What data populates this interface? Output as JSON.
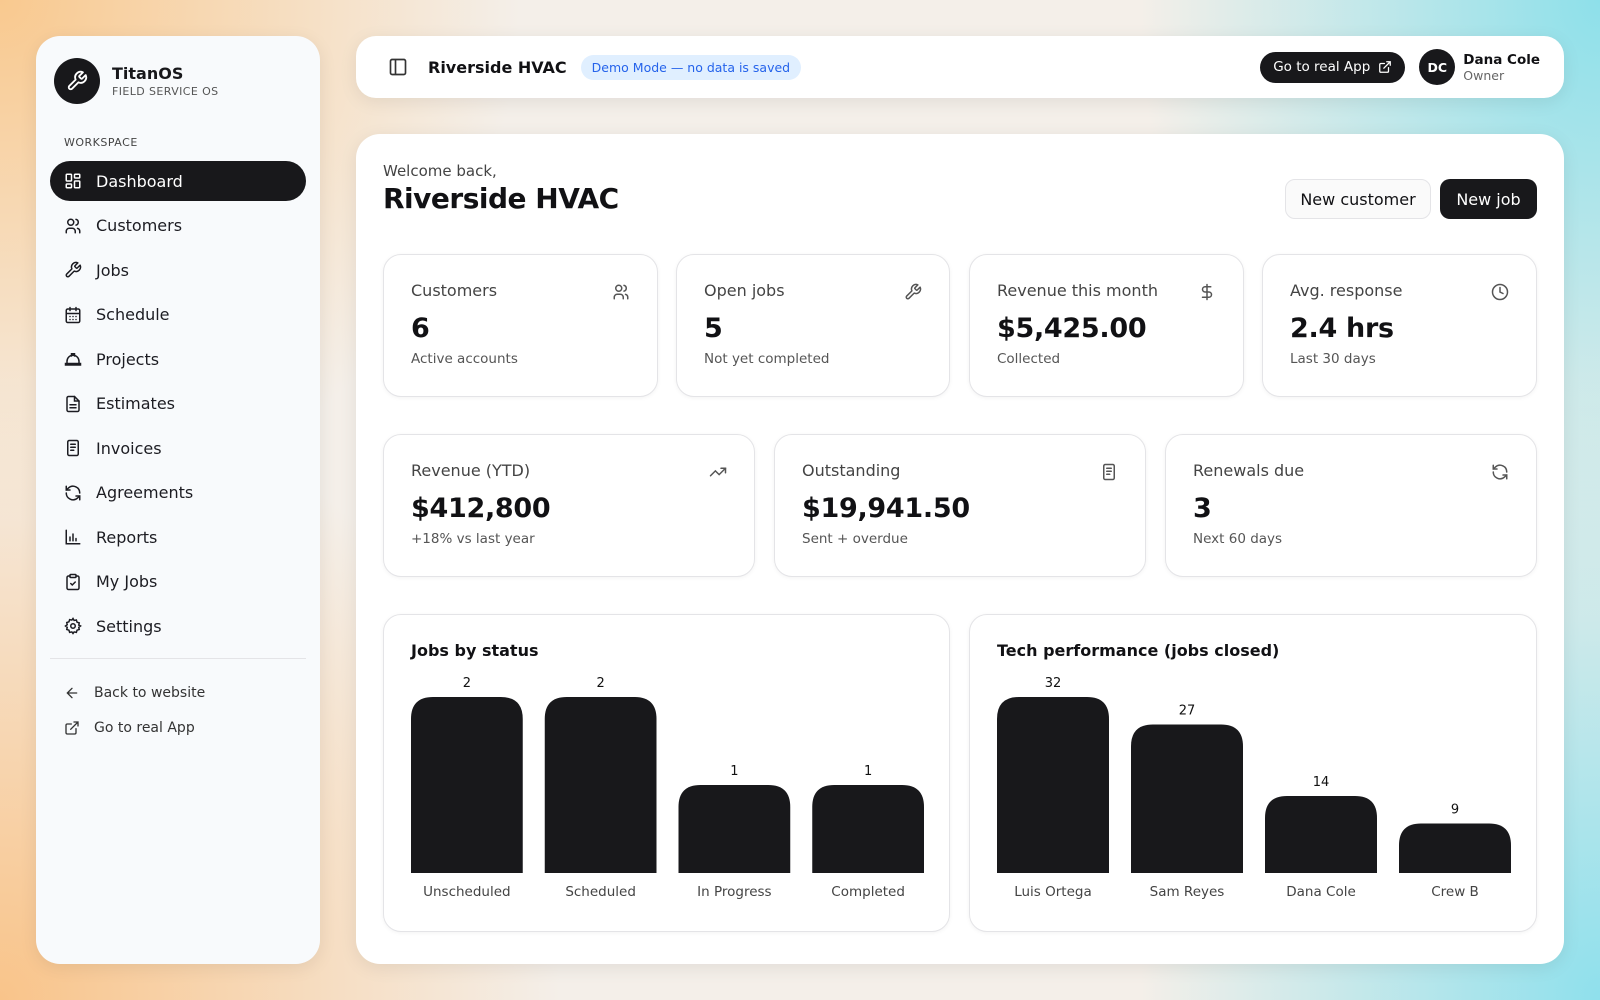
{
  "app": {
    "name": "TitanOS",
    "tagline": "FIELD SERVICE OS"
  },
  "sidebar": {
    "section_label": "WORKSPACE",
    "items": [
      {
        "label": "Dashboard",
        "icon": "grid-icon",
        "active": true
      },
      {
        "label": "Customers",
        "icon": "users-icon"
      },
      {
        "label": "Jobs",
        "icon": "wrench-icon"
      },
      {
        "label": "Schedule",
        "icon": "calendar-icon"
      },
      {
        "label": "Projects",
        "icon": "hardhat-icon"
      },
      {
        "label": "Estimates",
        "icon": "document-icon"
      },
      {
        "label": "Invoices",
        "icon": "receipt-icon"
      },
      {
        "label": "Agreements",
        "icon": "refresh-icon"
      },
      {
        "label": "Reports",
        "icon": "bar-chart-icon"
      },
      {
        "label": "My Jobs",
        "icon": "clipboard-icon"
      },
      {
        "label": "Settings",
        "icon": "gear-icon"
      }
    ],
    "footer_links": [
      {
        "label": "Back to website",
        "icon": "arrow-left-icon"
      },
      {
        "label": "Go to real App",
        "icon": "external-link-icon"
      }
    ]
  },
  "topbar": {
    "title": "Riverside HVAC",
    "demo_badge": "Demo Mode — no data is saved",
    "real_app_button": "Go to real App",
    "user": {
      "initials": "DC",
      "name": "Dana Cole",
      "role": "Owner"
    }
  },
  "main": {
    "welcome": "Welcome back,",
    "title": "Riverside HVAC",
    "new_customer_button": "New customer",
    "new_job_button": "New job"
  },
  "stats_row1": [
    {
      "label": "Customers",
      "value": "6",
      "sub": "Active accounts",
      "icon": "users-icon"
    },
    {
      "label": "Open jobs",
      "value": "5",
      "sub": "Not yet completed",
      "icon": "wrench-icon"
    },
    {
      "label": "Revenue this month",
      "value": "$5,425.00",
      "sub": "Collected",
      "icon": "dollar-icon"
    },
    {
      "label": "Avg. response",
      "value": "2.4 hrs",
      "sub": "Last 30 days",
      "icon": "clock-icon"
    }
  ],
  "stats_row2": [
    {
      "label": "Revenue (YTD)",
      "value": "$412,800",
      "sub": "+18% vs last year",
      "icon": "trending-up-icon"
    },
    {
      "label": "Outstanding",
      "value": "$19,941.50",
      "sub": "Sent + overdue",
      "icon": "receipt-icon"
    },
    {
      "label": "Renewals due",
      "value": "3",
      "sub": "Next 60 days",
      "icon": "refresh-icon"
    }
  ],
  "colors": {
    "primary": "#18181b",
    "accent_blue": "#2563eb",
    "demo_bg": "#e0efff",
    "border": "#e4e4e7"
  },
  "chart_data": [
    {
      "type": "bar",
      "title": "Jobs by status",
      "categories": [
        "Unscheduled",
        "Scheduled",
        "In Progress",
        "Completed"
      ],
      "values": [
        2,
        2,
        1,
        1
      ],
      "ylim": [
        0,
        2
      ]
    },
    {
      "type": "bar",
      "title": "Tech performance (jobs closed)",
      "categories": [
        "Luis Ortega",
        "Sam Reyes",
        "Dana Cole",
        "Crew B"
      ],
      "values": [
        32,
        27,
        14,
        9
      ],
      "ylim": [
        0,
        32
      ]
    }
  ]
}
